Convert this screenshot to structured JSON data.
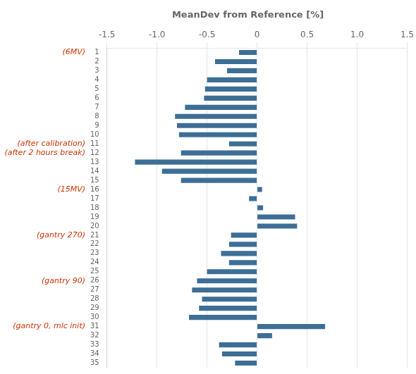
{
  "chart_data": {
    "type": "bar",
    "orientation": "horizontal",
    "title": "MeanDev from Reference [%]",
    "categories": [
      "1",
      "2",
      "3",
      "4",
      "5",
      "6",
      "7",
      "8",
      "9",
      "10",
      "11",
      "12",
      "13",
      "14",
      "15",
      "16",
      "17",
      "18",
      "19",
      "20",
      "21",
      "22",
      "23",
      "24",
      "25",
      "26",
      "27",
      "28",
      "29",
      "30",
      "31",
      "32",
      "33",
      "34",
      "35"
    ],
    "values": [
      -0.18,
      -0.42,
      -0.3,
      -0.5,
      -0.52,
      -0.53,
      -0.72,
      -0.82,
      -0.8,
      -0.78,
      -0.28,
      -0.76,
      -1.22,
      -0.95,
      -0.76,
      0.05,
      -0.08,
      0.06,
      0.38,
      0.4,
      -0.26,
      -0.28,
      -0.36,
      -0.28,
      -0.5,
      -0.6,
      -0.65,
      -0.55,
      -0.58,
      -0.68,
      0.68,
      0.15,
      -0.38,
      -0.35,
      -0.22
    ],
    "color": "#3d6e96",
    "xlim": [
      -1.5,
      1.5
    ],
    "xticks": [
      -1.5,
      {
        "value": -1,
        "label": "-1.0"
      },
      -0.5,
      0,
      0.5,
      {
        "value": 1,
        "label": "1.0"
      },
      1.5
    ],
    "grid": true,
    "annotations": [
      {
        "category": "1",
        "text": "(6MV)",
        "color": "#cc3300"
      },
      {
        "category": "11",
        "text": "(after calibration)",
        "color": "#cc3300"
      },
      {
        "category": "12",
        "text": "(after 2 hours break)",
        "color": "#cc3300"
      },
      {
        "category": "16",
        "text": "(15MV)",
        "color": "#cc3300"
      },
      {
        "category": "21",
        "text": "(gantry 270)",
        "color": "#cc3300"
      },
      {
        "category": "26",
        "text": "(gantry 90)",
        "color": "#cc3300"
      },
      {
        "category": "31",
        "text": "(gantry 0, mlc init)",
        "color": "#cc3300"
      }
    ]
  }
}
